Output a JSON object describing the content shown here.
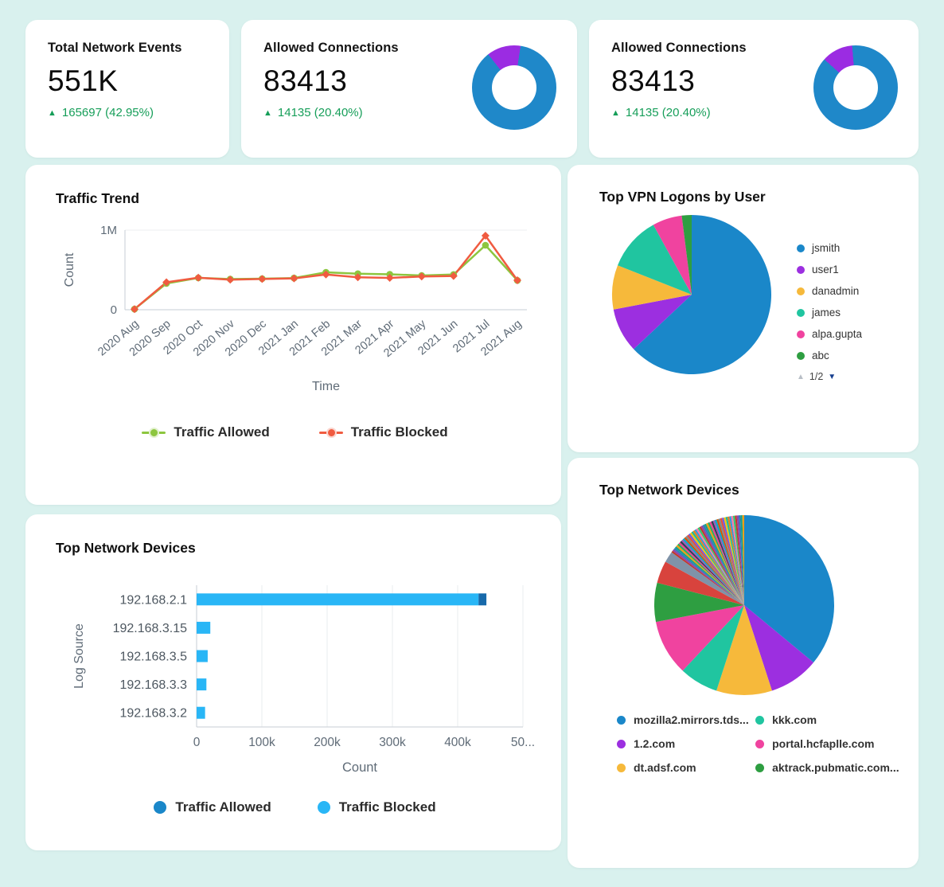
{
  "theme": {
    "background": "#d9f1ee",
    "card": "#ffffff",
    "positive_green": "#169e59",
    "axis_text": "#5f6b77"
  },
  "sliver_palette": [
    "#c0392b",
    "#8e44ad",
    "#2980b9",
    "#16a085",
    "#f39c12",
    "#27ae60",
    "#e84393",
    "#2c3e50",
    "#9b59b6",
    "#00a8cc",
    "#d35400",
    "#7f8c8d",
    "#e74c3c",
    "#6c5ce7",
    "#f1c40f",
    "#1abc9c",
    "#e67e22",
    "#3498db",
    "#fd79a8",
    "#2ecc71"
  ],
  "stat_cards": [
    {
      "title": "Total Network Events",
      "value": "551K",
      "delta_arrow": "▲",
      "delta_text": "165697 (42.95%)",
      "donut": null
    },
    {
      "title": "Allowed Connections",
      "value": "83413",
      "delta_arrow": "▲",
      "delta_text": "14135 (20.40%)",
      "donut": {
        "start_deg": -38,
        "slices": [
          {
            "value": 13,
            "color": "#9b2ce2"
          },
          {
            "value": 87,
            "color": "#1f88c9"
          }
        ]
      }
    },
    {
      "title": "Allowed Connections",
      "value": "83413",
      "delta_arrow": "▲",
      "delta_text": "14135 (20.40%)",
      "donut": {
        "start_deg": -48,
        "slices": [
          {
            "value": 12,
            "color": "#9b2ce2"
          },
          {
            "value": 88,
            "color": "#1f88c9"
          }
        ]
      }
    }
  ],
  "chart_data": [
    {
      "id": "traffic-trend",
      "type": "line",
      "title": "Traffic Trend",
      "xlabel": "Time",
      "ylabel": "Count",
      "ylim": [
        0,
        1000000
      ],
      "yticks": [
        {
          "value": 0,
          "label": "0"
        },
        {
          "value": 1000000,
          "label": "1M"
        }
      ],
      "categories": [
        "2020 Aug",
        "2020 Sep",
        "2020 Oct",
        "2020 Nov",
        "2020 Dec",
        "2021 Jan",
        "2021 Feb",
        "2021 Mar",
        "2021 Apr",
        "2021 May",
        "2021 Jun",
        "2021 Jul",
        "2021 Aug"
      ],
      "series": [
        {
          "name": "Traffic Allowed",
          "color": "#8dc63f",
          "marker": "circle",
          "values": [
            8000,
            330000,
            400000,
            385000,
            390000,
            398000,
            470000,
            452000,
            445000,
            430000,
            442000,
            810000,
            368000
          ]
        },
        {
          "name": "Traffic Blocked",
          "color": "#f05b40",
          "marker": "diamond",
          "values": [
            8000,
            345000,
            402000,
            378000,
            386000,
            394000,
            442000,
            408000,
            400000,
            417000,
            424000,
            930000,
            370000
          ]
        }
      ],
      "legend_position": "bottom",
      "grid": false
    },
    {
      "id": "vpn-users",
      "type": "pie",
      "title": "Top VPN Logons by User",
      "slices": [
        {
          "label": "jsmith",
          "value": 63,
          "color": "#1a87c9"
        },
        {
          "label": "user1",
          "value": 9,
          "color": "#9c2fe0"
        },
        {
          "label": "danadmin",
          "value": 9,
          "color": "#f6b93b"
        },
        {
          "label": "james",
          "value": 11,
          "color": "#20c5a0"
        },
        {
          "label": "alpa.gupta",
          "value": 6,
          "color": "#f0439f"
        },
        {
          "label": "abc",
          "value": 2,
          "color": "#2e9e41"
        }
      ],
      "legend_position": "right",
      "pagination": "1/2"
    },
    {
      "id": "devices-bar",
      "type": "bar",
      "title": "Top Network Devices",
      "orientation": "horizontal",
      "stacked": true,
      "xlabel": "Count",
      "ylabel": "Log Source",
      "xlim": [
        0,
        500000
      ],
      "xticks": [
        {
          "value": 0,
          "label": "0"
        },
        {
          "value": 100000,
          "label": "100k"
        },
        {
          "value": 200000,
          "label": "200k"
        },
        {
          "value": 300000,
          "label": "300k"
        },
        {
          "value": 400000,
          "label": "400k"
        },
        {
          "value": 500000,
          "label": "50..."
        }
      ],
      "categories": [
        "192.168.2.1",
        "192.168.3.15",
        "192.168.3.5",
        "192.168.3.3",
        "192.168.3.2"
      ],
      "series": [
        {
          "name": "Traffic Blocked",
          "color": "#29b6f6",
          "values": [
            432000,
            21000,
            17000,
            15000,
            13000
          ]
        },
        {
          "name": "Traffic Allowed",
          "color": "#1769aa",
          "values": [
            12000,
            0,
            0,
            0,
            0
          ]
        }
      ],
      "legend": [
        {
          "name": "Traffic Allowed",
          "color": "#1a87c9"
        },
        {
          "name": "Traffic Blocked",
          "color": "#29b6f6"
        }
      ],
      "legend_position": "bottom"
    },
    {
      "id": "devices-pie",
      "type": "pie",
      "title": "Top Network Devices",
      "slices": [
        {
          "label": "mozilla2.mirrors.tds...",
          "value": 36,
          "color": "#1a87c9"
        },
        {
          "label": "1.2.com",
          "value": 9,
          "color": "#9c2fe0"
        },
        {
          "label": "dt.adsf.com",
          "value": 10,
          "color": "#f6b93b"
        },
        {
          "label": "kkk.com",
          "value": 7,
          "color": "#20c5a0"
        },
        {
          "label": "portal.hcfaplle.com",
          "value": 10,
          "color": "#f0439f"
        },
        {
          "label": "aktrack.pubmatic.com...",
          "value": 7,
          "color": "#2e9e41"
        },
        {
          "label": "",
          "value": 4,
          "color": "#d8433d"
        },
        {
          "label": "",
          "value": 2,
          "color": "#7f93a8"
        }
      ],
      "other_slivers": {
        "percent": 15,
        "count": 45
      },
      "legend_columns": 2,
      "legend_position": "bottom"
    }
  ]
}
